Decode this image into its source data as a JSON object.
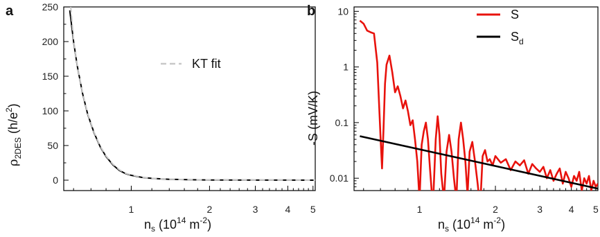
{
  "chart_data": [
    {
      "panel": "a",
      "type": "line",
      "xscale": "log",
      "xlim": [
        0.55,
        5.1
      ],
      "ylim": [
        -15,
        250
      ],
      "xlabel_main": "n",
      "xlabel_sub": "s",
      "xlabel_rest_1": " (10",
      "xlabel_sup_1": "14",
      "xlabel_rest_2": " m",
      "xlabel_sup_2": "-2",
      "xlabel_rest_3": ")",
      "ylabel_main": "ρ",
      "ylabel_sub": "2DES",
      "ylabel_rest": " (h/e",
      "ylabel_sup": "2",
      "ylabel_end": ")",
      "xticks": [
        {
          "value": 1,
          "label": "1"
        },
        {
          "value": 2,
          "label": "2"
        },
        {
          "value": 3,
          "label": "3"
        },
        {
          "value": 4,
          "label": "4"
        },
        {
          "value": 5,
          "label": "5"
        }
      ],
      "yticks": [
        {
          "value": 0,
          "label": "0"
        },
        {
          "value": 50,
          "label": "50"
        },
        {
          "value": 100,
          "label": "100"
        },
        {
          "value": 150,
          "label": "150"
        },
        {
          "value": 200,
          "label": "200"
        },
        {
          "value": 250,
          "label": "250"
        }
      ],
      "legend": [
        {
          "label": "KT fit",
          "style": "dashed",
          "color": "#c8c8c8"
        }
      ],
      "series": [
        {
          "style": "solid",
          "color": "#000000",
          "x": [
            0.58,
            0.6,
            0.62,
            0.65,
            0.68,
            0.72,
            0.76,
            0.8,
            0.85,
            0.9,
            0.95,
            1.0,
            1.1,
            1.2,
            1.4,
            1.7,
            2.0,
            3.0,
            4.0,
            5.1
          ],
          "y": [
            245,
            200,
            165,
            125,
            95,
            68,
            48,
            34,
            22,
            14,
            9.5,
            7,
            4,
            2.6,
            1.3,
            0.6,
            0.3,
            0.1,
            0.05,
            0.02
          ]
        },
        {
          "name": "KT fit",
          "style": "dashed",
          "color": "#c8c8c8",
          "x": [
            0.585,
            0.6,
            0.62,
            0.65,
            0.68,
            0.72,
            0.76,
            0.8,
            0.85,
            0.9,
            0.95,
            1.0,
            1.1,
            1.2,
            1.4,
            1.7,
            2.0,
            3.0,
            4.0,
            5.1
          ],
          "y": [
            250,
            202,
            166,
            126,
            96,
            69,
            49,
            35,
            23,
            15,
            10,
            7.5,
            4.3,
            2.8,
            1.4,
            0.7,
            0.35,
            0.12,
            0.06,
            0.03
          ]
        }
      ]
    },
    {
      "panel": "b",
      "type": "line",
      "xscale": "log",
      "yscale": "log",
      "xlim": [
        0.55,
        5.1
      ],
      "ylim": [
        0.006,
        12
      ],
      "xlabel_main": "n",
      "xlabel_sub": "s",
      "xlabel_rest_1": " (10",
      "xlabel_sup_1": "14",
      "xlabel_rest_2": " m",
      "xlabel_sup_2": "-2",
      "xlabel_rest_3": ")",
      "ylabel": "-S (mV/K)",
      "xticks": [
        {
          "value": 1,
          "label": "1"
        },
        {
          "value": 2,
          "label": "2"
        },
        {
          "value": 3,
          "label": "3"
        },
        {
          "value": 4,
          "label": "4"
        },
        {
          "value": 5,
          "label": "5"
        }
      ],
      "yticks": [
        {
          "value": 0.01,
          "label": "0.01"
        },
        {
          "value": 0.1,
          "label": "0.1"
        },
        {
          "value": 1,
          "label": "1"
        },
        {
          "value": 10,
          "label": "10"
        }
      ],
      "legend": [
        {
          "label": "S",
          "sub": "",
          "color": "#e8120c"
        },
        {
          "label": "S",
          "sub": "d",
          "color": "#000000"
        }
      ],
      "series": [
        {
          "name": "S",
          "color": "#e8120c",
          "x": [
            0.58,
            0.6,
            0.62,
            0.64,
            0.66,
            0.68,
            0.7,
            0.71,
            0.72,
            0.73,
            0.74,
            0.76,
            0.78,
            0.8,
            0.82,
            0.84,
            0.86,
            0.88,
            0.9,
            0.92,
            0.94,
            0.96,
            0.98,
            1.0,
            1.02,
            1.04,
            1.06,
            1.08,
            1.1,
            1.13,
            1.16,
            1.18,
            1.2,
            1.22,
            1.25,
            1.28,
            1.31,
            1.34,
            1.37,
            1.4,
            1.43,
            1.46,
            1.49,
            1.52,
            1.55,
            1.58,
            1.62,
            1.66,
            1.7,
            1.74,
            1.78,
            1.82,
            1.86,
            1.9,
            1.95,
            2.0,
            2.1,
            2.2,
            2.3,
            2.4,
            2.5,
            2.6,
            2.7,
            2.8,
            2.9,
            3.0,
            3.1,
            3.2,
            3.3,
            3.4,
            3.5,
            3.6,
            3.7,
            3.8,
            3.9,
            4.0,
            4.1,
            4.2,
            4.3,
            4.4,
            4.5,
            4.6,
            4.7,
            4.8,
            4.9,
            5.0,
            5.1
          ],
          "y": [
            6.8,
            6.0,
            4.5,
            4.2,
            4.0,
            1.2,
            0.06,
            0.015,
            0.08,
            0.5,
            1.1,
            1.6,
            0.8,
            0.35,
            0.45,
            0.3,
            0.18,
            0.25,
            0.16,
            0.09,
            0.11,
            0.05,
            0.02,
            0.004,
            0.04,
            0.07,
            0.1,
            0.05,
            0.015,
            0.003,
            0.05,
            0.13,
            0.06,
            0.012,
            0.004,
            0.03,
            0.06,
            0.03,
            0.01,
            0.004,
            0.05,
            0.1,
            0.05,
            0.02,
            0.005,
            0.03,
            0.045,
            0.02,
            0.008,
            0.003,
            0.025,
            0.032,
            0.02,
            0.022,
            0.017,
            0.025,
            0.019,
            0.022,
            0.014,
            0.02,
            0.017,
            0.021,
            0.012,
            0.018,
            0.015,
            0.013,
            0.016,
            0.01,
            0.014,
            0.009,
            0.012,
            0.015,
            0.008,
            0.013,
            0.01,
            0.007,
            0.011,
            0.009,
            0.013,
            0.006,
            0.01,
            0.008,
            0.011,
            0.006,
            0.009,
            0.007,
            0.008
          ]
        },
        {
          "name": "Sd",
          "color": "#000000",
          "x": [
            0.58,
            5.1
          ],
          "y": [
            0.057,
            0.0065
          ]
        }
      ]
    }
  ],
  "panels": {
    "a_label": "a",
    "b_label": "b"
  }
}
